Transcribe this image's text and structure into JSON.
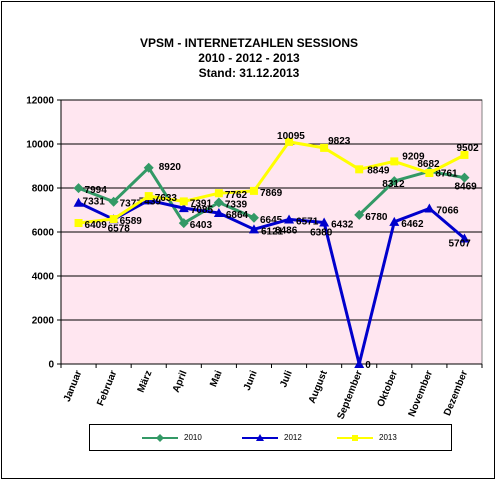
{
  "chart_data": {
    "type": "line",
    "title_lines": [
      "VPSM - INTERNETZAHLEN  SESSIONS",
      "2010 - 2012 - 2013",
      "Stand: 31.12.2013"
    ],
    "categories": [
      "Januar",
      "Februar",
      "März",
      "April",
      "Mai",
      "Juni",
      "Juli",
      "August",
      "September",
      "Oktober",
      "November",
      "Dezember"
    ],
    "ylim": [
      0,
      12000
    ],
    "yticks": [
      0,
      2000,
      4000,
      6000,
      8000,
      10000,
      12000
    ],
    "ytick_labels": [
      "0",
      "2000",
      "4000",
      "6000",
      "8000",
      "10000",
      "12000"
    ],
    "grid": "horizontal",
    "legend_position": "bottom",
    "series": [
      {
        "name": "2010",
        "color": "#339966",
        "marker": "diamond",
        "values": [
          7994,
          7377,
          8920,
          6403,
          7339,
          6645,
          null,
          null,
          6780,
          8312,
          8761,
          8469
        ],
        "labels": [
          "7994",
          "7377",
          "8920",
          "6403",
          "7339",
          "6645",
          null,
          null,
          "6780",
          "8312",
          "8761",
          "8469"
        ]
      },
      {
        "name": "2012",
        "color": "#0000CC",
        "marker": "triangle",
        "values": [
          7331,
          6578,
          7439,
          7085,
          6864,
          6121,
          6571,
          6432,
          0,
          6462,
          7066,
          5707
        ],
        "labels": [
          "7331",
          "6578",
          "7439",
          "7085",
          "6864",
          "6121",
          "6571",
          "6432",
          "0",
          "6462",
          "7066",
          "5707"
        ]
      },
      {
        "name": "2013",
        "color": "#FFFF00",
        "marker": "square",
        "values": [
          6409,
          6589,
          7633,
          7391,
          7762,
          7869,
          10095,
          9823,
          8849,
          9209,
          8682,
          9502
        ],
        "labels": [
          "6409",
          "6589",
          "7633",
          "7391",
          "7762",
          "7869",
          "10095",
          "9823",
          "8849",
          "9209",
          "8682",
          "9502"
        ]
      }
    ],
    "extra_labels": [
      {
        "text": "6486",
        "x_index": 6,
        "y": 6486
      },
      {
        "text": "6380",
        "x_index": 7,
        "y": 6380
      }
    ]
  },
  "colors": {
    "plot_background": "#FFE6F0",
    "frame": "#000000",
    "grid": "#000000"
  }
}
